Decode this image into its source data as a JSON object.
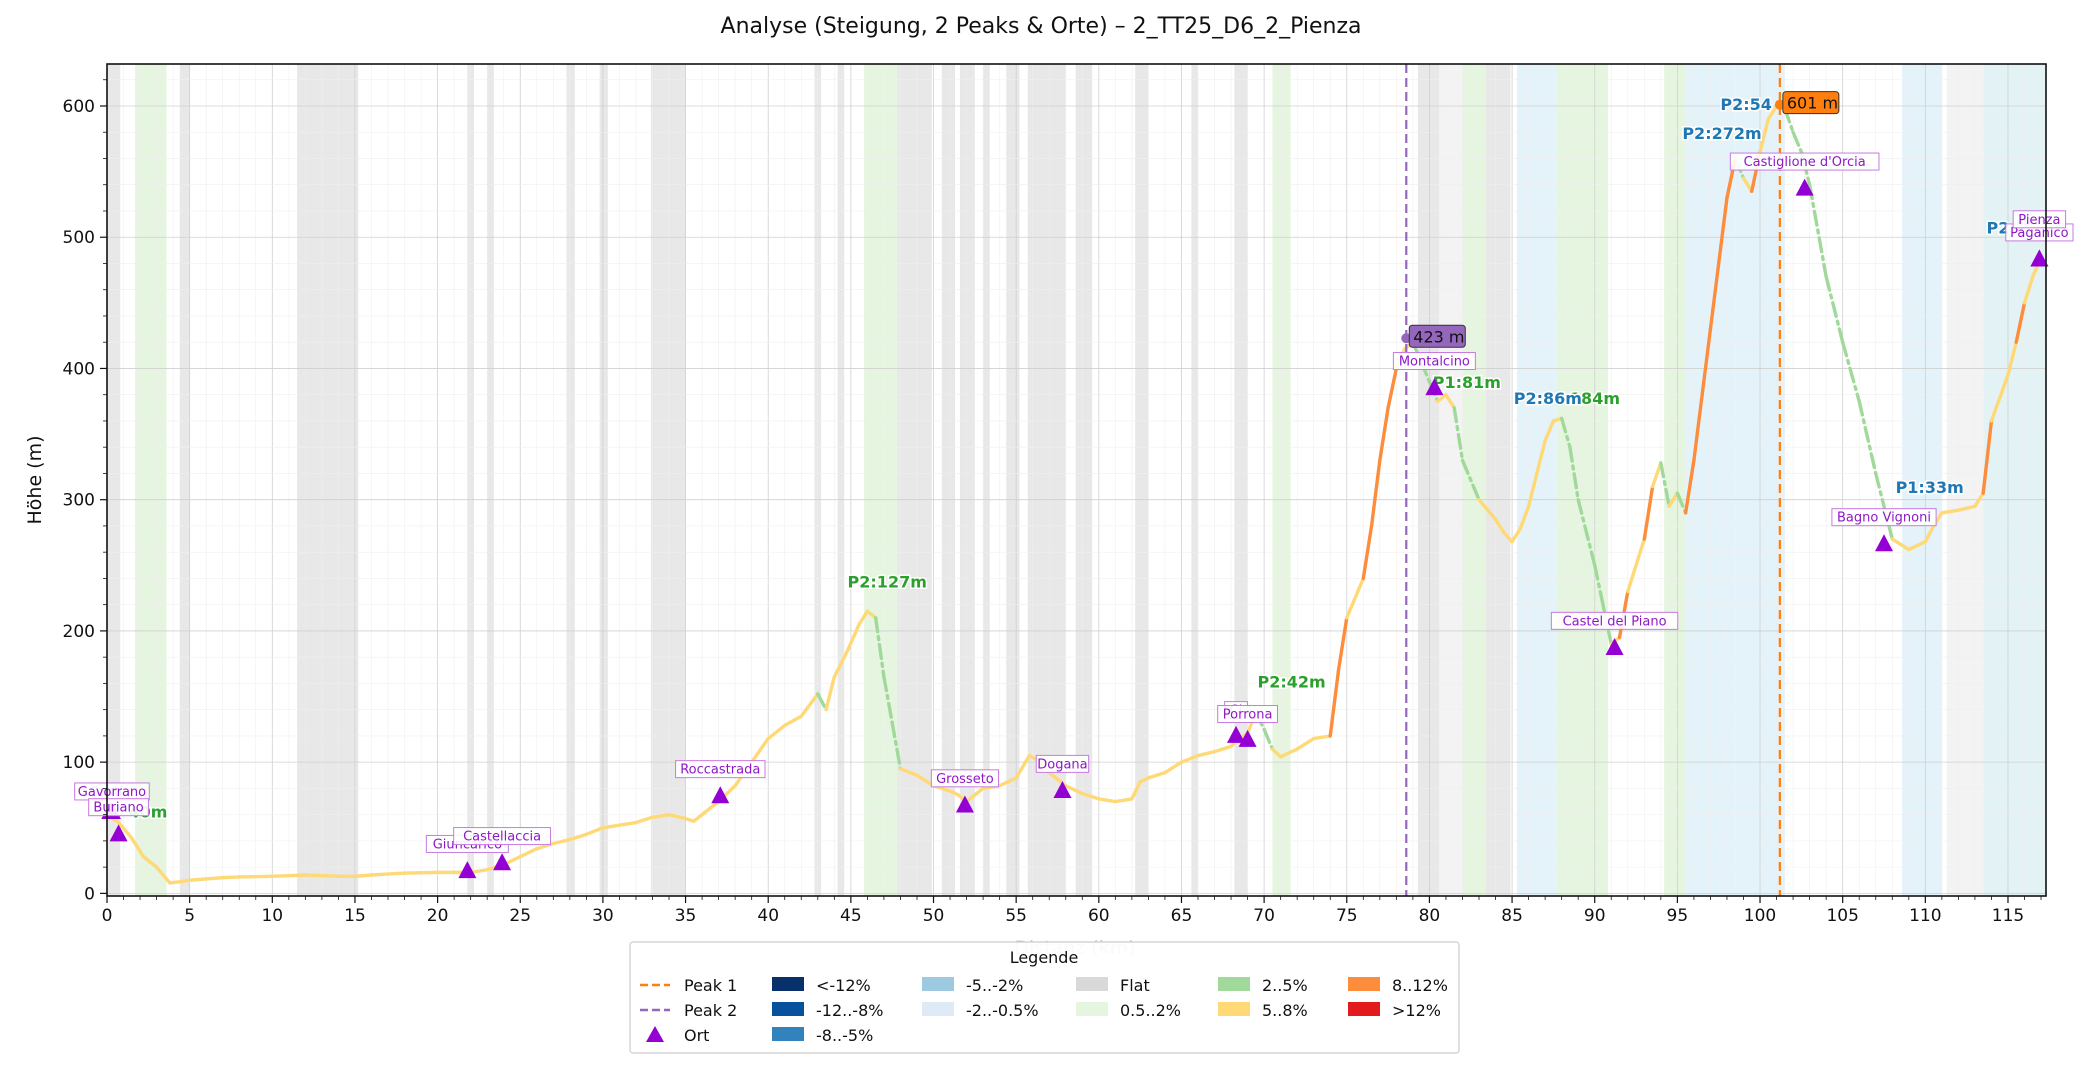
{
  "chart_data": {
    "type": "line",
    "title": "Analyse (Steigung, 2 Peaks & Orte) – 2_TT25_D6_2_Pienza",
    "xlabel": "Distanz (km)",
    "ylabel": "Höhe (m)",
    "xlim": [
      0,
      117.3
    ],
    "ylim": [
      -2,
      632
    ],
    "xticks": [
      0,
      5,
      10,
      15,
      20,
      25,
      30,
      35,
      40,
      45,
      50,
      55,
      60,
      65,
      70,
      75,
      80,
      85,
      90,
      95,
      100,
      105,
      110,
      115
    ],
    "yticks": [
      0,
      100,
      200,
      300,
      400,
      500,
      600
    ],
    "grid": true,
    "legend_placement": "bottom-center",
    "profile": [
      [
        0,
        60
      ],
      [
        0.7,
        54
      ],
      [
        1.5,
        42
      ],
      [
        2.2,
        28
      ],
      [
        3,
        20
      ],
      [
        3.8,
        8
      ],
      [
        4.5,
        9
      ],
      [
        5,
        10
      ],
      [
        6,
        11
      ],
      [
        7,
        12
      ],
      [
        8,
        12.5
      ],
      [
        10,
        13
      ],
      [
        12,
        14
      ],
      [
        14,
        13
      ],
      [
        15,
        13
      ],
      [
        16,
        14
      ],
      [
        18,
        15.5
      ],
      [
        20,
        16
      ],
      [
        22,
        16
      ],
      [
        23,
        18
      ],
      [
        24,
        22
      ],
      [
        25,
        28
      ],
      [
        26,
        34
      ],
      [
        27,
        38
      ],
      [
        28,
        41
      ],
      [
        29,
        45
      ],
      [
        30,
        50
      ],
      [
        31,
        52
      ],
      [
        32,
        54
      ],
      [
        33,
        58
      ],
      [
        34,
        60
      ],
      [
        35,
        57
      ],
      [
        35.5,
        55
      ],
      [
        36,
        60
      ],
      [
        37,
        70
      ],
      [
        38,
        82
      ],
      [
        39,
        100
      ],
      [
        40,
        118
      ],
      [
        41,
        128
      ],
      [
        42,
        135
      ],
      [
        43,
        152
      ],
      [
        43.5,
        140
      ],
      [
        44,
        165
      ],
      [
        44.8,
        185
      ],
      [
        45.5,
        205
      ],
      [
        46,
        215
      ],
      [
        46.5,
        210
      ],
      [
        47,
        165
      ],
      [
        47.5,
        130
      ],
      [
        48,
        95
      ],
      [
        49,
        90
      ],
      [
        50,
        82
      ],
      [
        51,
        78
      ],
      [
        51.5,
        75
      ],
      [
        52,
        70
      ],
      [
        53,
        80
      ],
      [
        54,
        82
      ],
      [
        55,
        88
      ],
      [
        55.8,
        105
      ],
      [
        56.5,
        100
      ],
      [
        57,
        92
      ],
      [
        58,
        82
      ],
      [
        59,
        76
      ],
      [
        60,
        72
      ],
      [
        61,
        70
      ],
      [
        62,
        72
      ],
      [
        62.5,
        85
      ],
      [
        63,
        88
      ],
      [
        64,
        92
      ],
      [
        65,
        100
      ],
      [
        66,
        105
      ],
      [
        67,
        108
      ],
      [
        68,
        112
      ],
      [
        68.5,
        118
      ],
      [
        69,
        122
      ],
      [
        69.5,
        138
      ],
      [
        70,
        125
      ],
      [
        70.5,
        110
      ],
      [
        71,
        104
      ],
      [
        72,
        110
      ],
      [
        73,
        118
      ],
      [
        74,
        120
      ],
      [
        74.5,
        170
      ],
      [
        75,
        210
      ],
      [
        76,
        240
      ],
      [
        76.5,
        280
      ],
      [
        77,
        330
      ],
      [
        77.5,
        370
      ],
      [
        78,
        400
      ],
      [
        78.5,
        415
      ],
      [
        79,
        420
      ],
      [
        79.5,
        405
      ],
      [
        80,
        390
      ],
      [
        80.5,
        375
      ],
      [
        81,
        380
      ],
      [
        81.5,
        370
      ],
      [
        82,
        330
      ],
      [
        83,
        300
      ],
      [
        84,
        285
      ],
      [
        84.5,
        275
      ],
      [
        85,
        268
      ],
      [
        85.5,
        278
      ],
      [
        86,
        295
      ],
      [
        86.5,
        320
      ],
      [
        87,
        345
      ],
      [
        87.5,
        360
      ],
      [
        88,
        362
      ],
      [
        88.5,
        340
      ],
      [
        89,
        300
      ],
      [
        90,
        250
      ],
      [
        90.5,
        220
      ],
      [
        91,
        190
      ],
      [
        91.5,
        195
      ],
      [
        92,
        230
      ],
      [
        93,
        270
      ],
      [
        93.5,
        310
      ],
      [
        94,
        328
      ],
      [
        94.5,
        295
      ],
      [
        95,
        305
      ],
      [
        95.5,
        290
      ],
      [
        96,
        330
      ],
      [
        96.5,
        380
      ],
      [
        97,
        430
      ],
      [
        97.5,
        480
      ],
      [
        98,
        530
      ],
      [
        98.5,
        560
      ],
      [
        99,
        545
      ],
      [
        99.5,
        535
      ],
      [
        100,
        565
      ],
      [
        100.5,
        590
      ],
      [
        101,
        600
      ],
      [
        101.5,
        598
      ],
      [
        102,
        580
      ],
      [
        102.5,
        565
      ],
      [
        103,
        540
      ],
      [
        104,
        470
      ],
      [
        105,
        420
      ],
      [
        106,
        375
      ],
      [
        107,
        320
      ],
      [
        108,
        270
      ],
      [
        109,
        262
      ],
      [
        110,
        268
      ],
      [
        110.5,
        280
      ],
      [
        111,
        290
      ],
      [
        112,
        292
      ],
      [
        113,
        295
      ],
      [
        113.5,
        305
      ],
      [
        114,
        360
      ],
      [
        115,
        395
      ],
      [
        115.5,
        420
      ],
      [
        116,
        450
      ],
      [
        116.5,
        470
      ],
      [
        117,
        485
      ]
    ],
    "bands": [
      [
        0,
        0.8,
        "flat"
      ],
      [
        1.7,
        3.6,
        "0.5..2%"
      ],
      [
        4.4,
        5,
        "flat"
      ],
      [
        11.5,
        15.2,
        "flat"
      ],
      [
        21.8,
        22.2,
        "flat"
      ],
      [
        23,
        23.4,
        "flat"
      ],
      [
        27.8,
        28.3,
        "flat"
      ],
      [
        29.8,
        30.3,
        "flat"
      ],
      [
        32.9,
        35,
        "flat"
      ],
      [
        42.8,
        43.2,
        "flat"
      ],
      [
        44.2,
        44.6,
        "flat"
      ],
      [
        45.8,
        47.8,
        "0.5..2%"
      ],
      [
        47.8,
        49.9,
        "flat"
      ],
      [
        50.5,
        51.3,
        "flat"
      ],
      [
        51.6,
        52.5,
        "flat"
      ],
      [
        53,
        53.4,
        "flat"
      ],
      [
        54.4,
        55.2,
        "flat"
      ],
      [
        55.7,
        58,
        "flat"
      ],
      [
        58.6,
        59.6,
        "flat"
      ],
      [
        62.2,
        63,
        "flat"
      ],
      [
        65.6,
        66,
        "flat"
      ],
      [
        68.2,
        69,
        "flat"
      ],
      [
        70.5,
        71.6,
        "0.5..2%"
      ],
      [
        79.3,
        80.6,
        "flat"
      ],
      [
        80.6,
        82,
        "flat_light"
      ],
      [
        82,
        83.4,
        "0.5..2%"
      ],
      [
        83.4,
        84.9,
        "flat"
      ],
      [
        85.3,
        87.7,
        "-2..-0.5%"
      ],
      [
        87.7,
        90.8,
        "0.5..2%"
      ],
      [
        94.2,
        95.5,
        "0.5..2%"
      ],
      [
        95.5,
        98.5,
        "-2..-0.5%"
      ],
      [
        98.5,
        101.5,
        "-2..-0.5%"
      ],
      [
        108.6,
        111,
        "-2..-0.5%"
      ],
      [
        111.3,
        113.5,
        "flat_light"
      ],
      [
        113.5,
        117.3,
        "teal"
      ]
    ],
    "peak1_x": 101.2,
    "peak2_x": 78.6,
    "summit_labels": [
      {
        "text": "423 m",
        "x": 78.6,
        "y": 423,
        "kind": "peak2"
      },
      {
        "text": "601 m",
        "x": 101.2,
        "y": 601,
        "kind": "peak1"
      }
    ],
    "peak_annotations": [
      {
        "text": "P2:127m",
        "x": 44.8,
        "y": 233,
        "color": "#2ca02c"
      },
      {
        "text": "P2:42m",
        "x": 69.6,
        "y": 157,
        "color": "#2ca02c"
      },
      {
        "text": "P1:81m",
        "x": 80.2,
        "y": 385,
        "color": "#2ca02c"
      },
      {
        "text": "184m",
        "x": 88.5,
        "y": 373,
        "color": "#2ca02c"
      },
      {
        "text": "P2:86m",
        "x": 85.1,
        "y": 373,
        "color": "#1f77b4"
      },
      {
        "text": "P2:272m",
        "x": 95.3,
        "y": 575,
        "color": "#1f77b4"
      },
      {
        "text": "P2:54",
        "x": 97.6,
        "y": 597,
        "color": "#1f77b4"
      },
      {
        "text": "P1:33m",
        "x": 108.2,
        "y": 305,
        "color": "#1f77b4"
      },
      {
        "text": "P2:1",
        "x": 113.7,
        "y": 503,
        "color": "#1f77b4"
      },
      {
        "text": "40m",
        "x": 1.3,
        "y": 58,
        "color": "#2ca02c"
      }
    ],
    "towns": [
      {
        "name": "Castiglione della Pescaia",
        "x": 0.2,
        "y": 62,
        "label_y": 75,
        "label_text": "Castig"
      },
      {
        "name": "Gavorrano",
        "x": 0.3,
        "y": 62,
        "label_y": 75,
        "label_text": "Gavorrano"
      },
      {
        "name": "Buriano",
        "x": 0.7,
        "y": 45,
        "label_y": 63,
        "label_text": "Buriano"
      },
      {
        "name": "Giuncarico",
        "x": 21.8,
        "y": 17,
        "label_y": 35,
        "label_text": "Giuncarico"
      },
      {
        "name": "Castellaccia",
        "x": 23.9,
        "y": 23,
        "label_y": 41,
        "label_text": "Castellaccia"
      },
      {
        "name": "Roccastrada",
        "x": 37.1,
        "y": 74,
        "label_y": 92,
        "label_text": "Roccastrada"
      },
      {
        "name": "Grosseto",
        "x": 51.9,
        "y": 67,
        "label_y": 85,
        "label_text": "Grosseto"
      },
      {
        "name": "Dogana",
        "x": 57.8,
        "y": 78,
        "label_y": 96,
        "label_text": "Dogana"
      },
      {
        "name": "Cinigiano",
        "x": 68.3,
        "y": 120,
        "label_y": 137,
        "label_text": "Ci"
      },
      {
        "name": "Porrona",
        "x": 69,
        "y": 117,
        "label_y": 134,
        "label_text": "Porrona"
      },
      {
        "name": "Montalcino",
        "x": 80.3,
        "y": 385,
        "label_y": 403,
        "label_text": "Montalcino"
      },
      {
        "name": "Castel del Piano",
        "x": 91.2,
        "y": 187,
        "label_y": 205,
        "label_text": "Castel del Piano"
      },
      {
        "name": "Castiglione d'Orcia",
        "x": 102.7,
        "y": 537,
        "label_y": 555,
        "label_text": "Castiglione d'Orcia"
      },
      {
        "name": "Bagno Vignoni",
        "x": 107.5,
        "y": 266,
        "label_y": 284,
        "label_text": "Bagno Vignoni"
      },
      {
        "name": "Paganico",
        "x": 116.9,
        "y": 483,
        "label_y": 501,
        "label_text": "Paganico"
      },
      {
        "name": "Pienza",
        "x": 116.9,
        "y": 483,
        "label_y": 511,
        "label_text": "Pienza"
      }
    ],
    "legend": {
      "title": "Legende",
      "entries": [
        {
          "label": "Peak 1",
          "kind": "dash",
          "color": "#ff7f0e"
        },
        {
          "label": "<-12%",
          "kind": "patch",
          "color": "#08306b"
        },
        {
          "label": "-5..-2%",
          "kind": "patch",
          "color": "#9ecae1"
        },
        {
          "label": "Flat",
          "kind": "patch",
          "color": "#d9d9d9"
        },
        {
          "label": "2..5%",
          "kind": "patch",
          "color": "#a1d99b"
        },
        {
          "label": "8..12%",
          "kind": "patch",
          "color": "#fd8d3c"
        },
        {
          "label": "Peak 2",
          "kind": "dash",
          "color": "#9467bd"
        },
        {
          "label": "-12..-8%",
          "kind": "patch",
          "color": "#08519c"
        },
        {
          "label": "-2..-0.5%",
          "kind": "patch",
          "color": "#deebf7"
        },
        {
          "label": "0.5..2%",
          "kind": "patch",
          "color": "#e5f5e0"
        },
        {
          "label": "5..8%",
          "kind": "patch",
          "color": "#fed976"
        },
        {
          "label": ">12%",
          "kind": "patch",
          "color": "#e31a1c"
        },
        {
          "label": "Ort",
          "kind": "triangle",
          "color": "#9400d3"
        },
        {
          "label": "-8..-5%",
          "kind": "patch",
          "color": "#3182bd"
        }
      ]
    },
    "colors": {
      "flat": "#e8e8e8",
      "flat_light": "#f3f3f3",
      "light_green": "#e6f5e0",
      "light_blue": "#e4f2f9",
      "teal": "#e3f2f4",
      "peak1": "#ff7f0e",
      "peak2": "#9467bd",
      "town": "#9400d3",
      "town_text": "#8f18c8",
      "seg_5_8": "#fed976",
      "seg_8_12": "#fd8d3c",
      "seg_2_5": "#a1d99b"
    }
  }
}
